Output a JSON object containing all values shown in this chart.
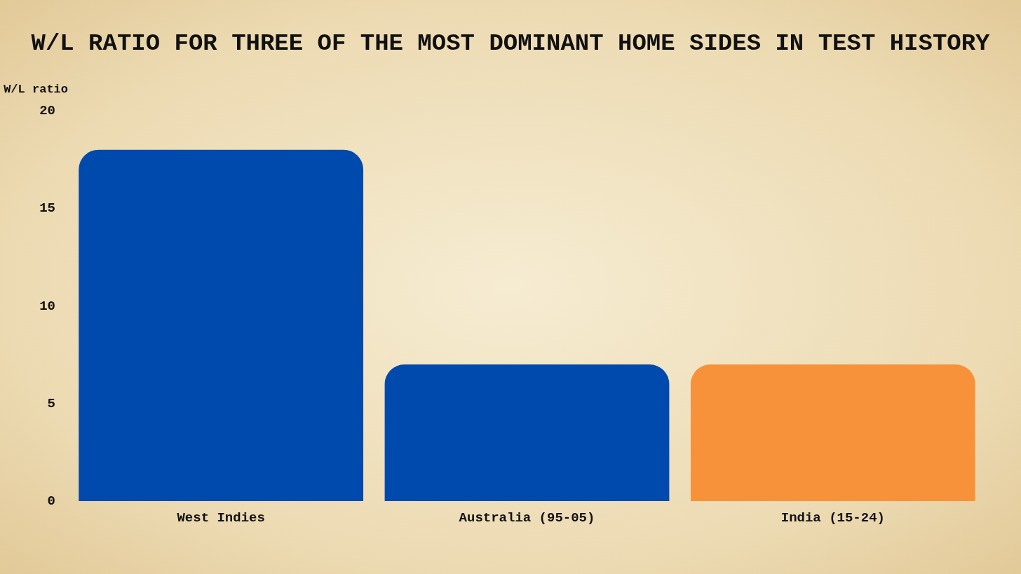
{
  "chart_data": {
    "type": "bar",
    "title": "W/L RATIO FOR THREE OF THE MOST DOMINANT HOME SIDES IN TEST HISTORY",
    "ylabel": "W/L ratio",
    "categories": [
      "West Indies",
      "Australia (95-05)",
      "India (15-24)"
    ],
    "values": [
      18,
      7,
      7
    ],
    "colors": [
      "#004aad",
      "#004aad",
      "#f7923a"
    ],
    "ylim": [
      0,
      20
    ],
    "yticks": [
      0,
      5,
      10,
      15,
      20
    ],
    "grid": false
  }
}
